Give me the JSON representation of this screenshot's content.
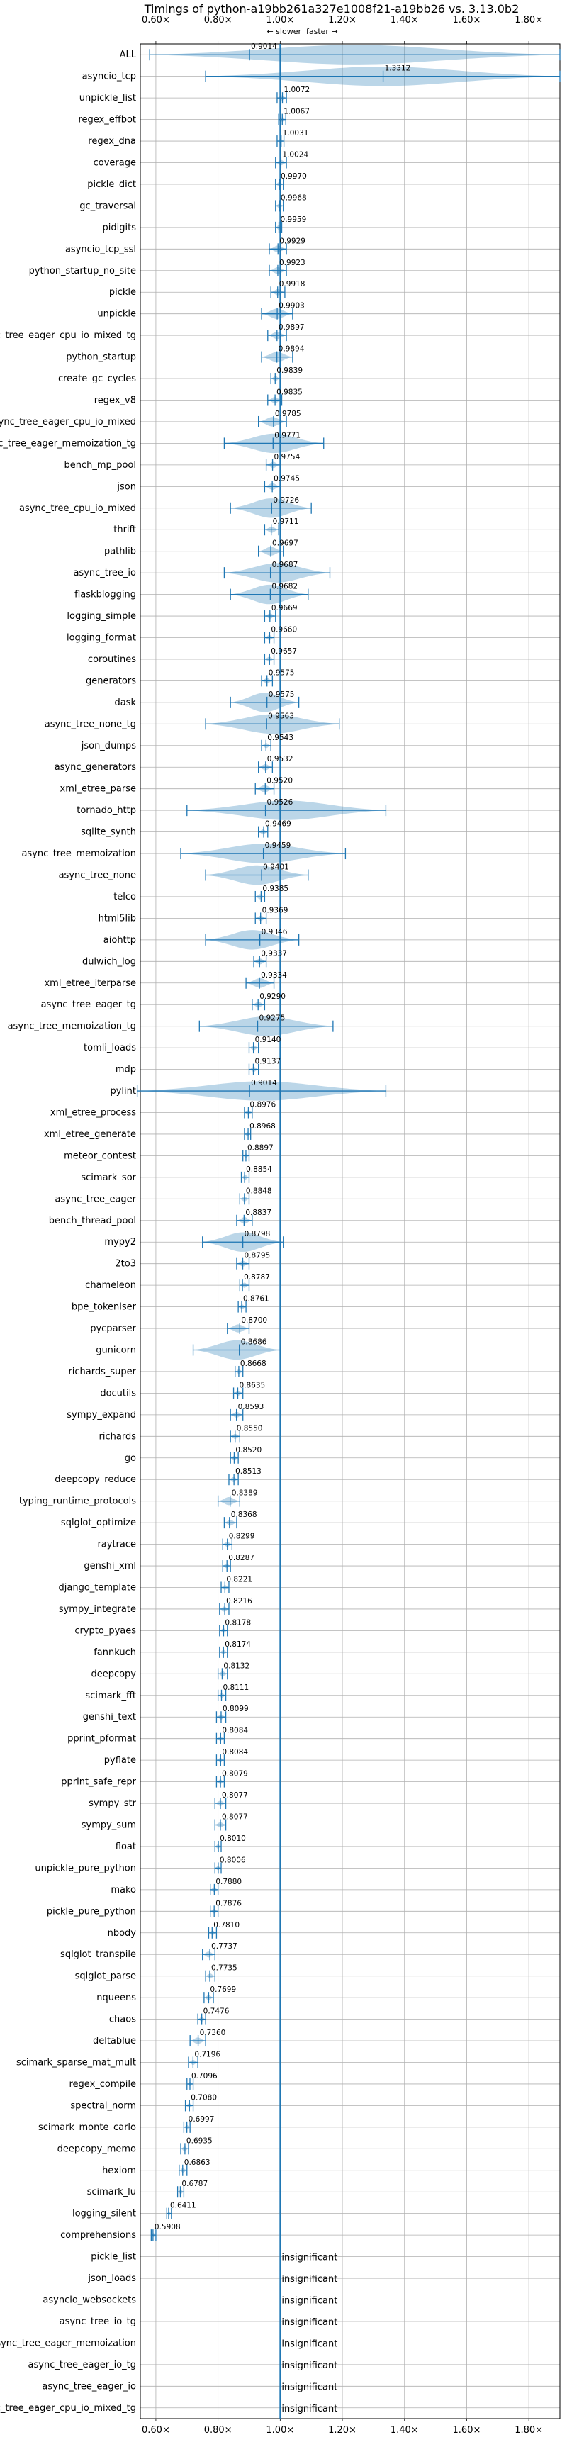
{
  "chart_data": {
    "type": "violin",
    "title": "Timings of python-a19bb261a327e1008f21-a19bb26 vs. 3.13.0b2",
    "direction_labels": {
      "slower": "← slower",
      "faster": "faster →"
    },
    "x_ticks": [
      "0.60×",
      "0.80×",
      "1.00×",
      "1.20×",
      "1.40×",
      "1.60×",
      "1.80×"
    ],
    "x_tick_values": [
      0.6,
      0.8,
      1.0,
      1.2,
      1.4,
      1.6,
      1.8
    ],
    "xlim": [
      0.55,
      1.9
    ],
    "reference_line": 1.0,
    "grid": true,
    "insignificant_label": "insignificant",
    "categories": [
      "ALL",
      "asyncio_tcp",
      "unpickle_list",
      "regex_effbot",
      "regex_dna",
      "coverage",
      "pickle_dict",
      "gc_traversal",
      "pidigits",
      "asyncio_tcp_ssl",
      "python_startup_no_site",
      "pickle",
      "unpickle",
      "async_tree_eager_cpu_io_mixed_tg",
      "python_startup",
      "create_gc_cycles",
      "regex_v8",
      "async_tree_eager_cpu_io_mixed",
      "async_tree_eager_memoization_tg",
      "bench_mp_pool",
      "json",
      "async_tree_cpu_io_mixed",
      "thrift",
      "pathlib",
      "async_tree_io",
      "flaskblogging",
      "logging_simple",
      "logging_format",
      "coroutines",
      "generators",
      "dask",
      "async_tree_none_tg",
      "json_dumps",
      "async_generators",
      "xml_etree_parse",
      "tornado_http",
      "sqlite_synth",
      "async_tree_memoization",
      "async_tree_none",
      "telco",
      "html5lib",
      "aiohttp",
      "dulwich_log",
      "xml_etree_iterparse",
      "async_tree_eager_tg",
      "async_tree_memoization_tg",
      "tomli_loads",
      "mdp",
      "pylint",
      "xml_etree_process",
      "xml_etree_generate",
      "meteor_contest",
      "scimark_sor",
      "async_tree_eager",
      "bench_thread_pool",
      "mypy2",
      "2to3",
      "chameleon",
      "bpe_tokeniser",
      "pycparser",
      "gunicorn",
      "richards_super",
      "docutils",
      "sympy_expand",
      "richards",
      "go",
      "deepcopy_reduce",
      "typing_runtime_protocols",
      "sqlglot_optimize",
      "raytrace",
      "genshi_xml",
      "django_template",
      "sympy_integrate",
      "crypto_pyaes",
      "fannkuch",
      "deepcopy",
      "scimark_fft",
      "genshi_text",
      "pprint_pformat",
      "pyflate",
      "pprint_safe_repr",
      "sympy_str",
      "sympy_sum",
      "float",
      "unpickle_pure_python",
      "mako",
      "pickle_pure_python",
      "nbody",
      "sqlglot_transpile",
      "sqlglot_parse",
      "nqueens",
      "chaos",
      "deltablue",
      "scimark_sparse_mat_mult",
      "regex_compile",
      "spectral_norm",
      "scimark_monte_carlo",
      "deepcopy_memo",
      "hexiom",
      "scimark_lu",
      "logging_silent",
      "comprehensions",
      "pickle_list",
      "json_loads",
      "asyncio_websockets",
      "async_tree_io_tg",
      "async_tree_eager_memoization",
      "async_tree_eager_io_tg",
      "async_tree_eager_io",
      "async_tree_eager_cpu_io_mixed_tg"
    ],
    "values": [
      0.9014,
      1.3312,
      1.0072,
      1.0067,
      1.0031,
      1.0024,
      0.997,
      0.9968,
      0.9959,
      0.9929,
      0.9923,
      0.9918,
      0.9903,
      0.9897,
      0.9894,
      0.9839,
      0.9835,
      0.9785,
      0.9771,
      0.9754,
      0.9745,
      0.9726,
      0.9711,
      0.9697,
      0.9687,
      0.9682,
      0.9669,
      0.966,
      0.9657,
      0.9575,
      0.9575,
      0.9563,
      0.9543,
      0.9532,
      0.952,
      0.9526,
      0.9469,
      0.9459,
      0.9401,
      0.9385,
      0.9369,
      0.9346,
      0.9337,
      0.9334,
      0.929,
      0.9275,
      0.914,
      0.9137,
      0.9014,
      0.8976,
      0.8968,
      0.8897,
      0.8854,
      0.8848,
      0.8837,
      0.8798,
      0.8795,
      0.8787,
      0.8761,
      0.87,
      0.8686,
      0.8668,
      0.8635,
      0.8593,
      0.855,
      0.852,
      0.8513,
      0.8389,
      0.8368,
      0.8299,
      0.8287,
      0.8221,
      0.8216,
      0.8178,
      0.8174,
      0.8132,
      0.8111,
      0.8099,
      0.8084,
      0.8084,
      0.8079,
      0.8077,
      0.8077,
      0.801,
      0.8006,
      0.788,
      0.7876,
      0.781,
      0.7737,
      0.7735,
      0.7699,
      0.7476,
      0.736,
      0.7196,
      0.7096,
      0.708,
      0.6997,
      0.6935,
      0.6863,
      0.6787,
      0.6411,
      0.5908,
      null,
      null,
      null,
      null,
      null,
      null,
      null,
      null
    ],
    "value_labels": [
      "0.9014",
      "1.3312",
      "1.0072",
      "1.0067",
      "1.0031",
      "1.0024",
      "0.9970",
      "0.9968",
      "0.9959",
      "0.9929",
      "0.9923",
      "0.9918",
      "0.9903",
      "0.9897",
      "0.9894",
      "0.9839",
      "0.9835",
      "0.9785",
      "0.9771",
      "0.9754",
      "0.9745",
      "0.9726",
      "0.9711",
      "0.9697",
      "0.9687",
      "0.9682",
      "0.9669",
      "0.9660",
      "0.9657",
      "0.9575",
      "0.9575",
      "0.9563",
      "0.9543",
      "0.9532",
      "0.9520",
      "0.9526",
      "0.9469",
      "0.9459",
      "0.9401",
      "0.9385",
      "0.9369",
      "0.9346",
      "0.9337",
      "0.9334",
      "0.9290",
      "0.9275",
      "0.9140",
      "0.9137",
      "0.9014",
      "0.8976",
      "0.8968",
      "0.8897",
      "0.8854",
      "0.8848",
      "0.8837",
      "0.8798",
      "0.8795",
      "0.8787",
      "0.8761",
      "0.8700",
      "0.8686",
      "0.8668",
      "0.8635",
      "0.8593",
      "0.8550",
      "0.8520",
      "0.8513",
      "0.8389",
      "0.8368",
      "0.8299",
      "0.8287",
      "0.8221",
      "0.8216",
      "0.8178",
      "0.8174",
      "0.8132",
      "0.8111",
      "0.8099",
      "0.8084",
      "0.8084",
      "0.8079",
      "0.8077",
      "0.8077",
      "0.8010",
      "0.8006",
      "0.7880",
      "0.7876",
      "0.7810",
      "0.7737",
      "0.7735",
      "0.7699",
      "0.7476",
      "0.7360",
      "0.7196",
      "0.7096",
      "0.7080",
      "0.6997",
      "0.6935",
      "0.6863",
      "0.6787",
      "0.6411",
      "0.5908",
      "",
      "",
      "",
      "",
      "",
      "",
      "",
      ""
    ],
    "ranges": [
      [
        0.58,
        1.9
      ],
      [
        0.76,
        1.9
      ],
      [
        0.99,
        1.02
      ],
      [
        0.995,
        1.018
      ],
      [
        0.99,
        1.012
      ],
      [
        0.985,
        1.02
      ],
      [
        0.985,
        1.01
      ],
      [
        0.985,
        1.01
      ],
      [
        0.985,
        1.005
      ],
      [
        0.965,
        1.02
      ],
      [
        0.965,
        1.02
      ],
      [
        0.97,
        1.015
      ],
      [
        0.94,
        1.04
      ],
      [
        0.96,
        1.02
      ],
      [
        0.94,
        1.04
      ],
      [
        0.97,
        1.0
      ],
      [
        0.96,
        1.005
      ],
      [
        0.93,
        1.02
      ],
      [
        0.82,
        1.14
      ],
      [
        0.955,
        1.0
      ],
      [
        0.95,
        1.0
      ],
      [
        0.84,
        1.1
      ],
      [
        0.95,
        0.995
      ],
      [
        0.93,
        1.01
      ],
      [
        0.82,
        1.16
      ],
      [
        0.84,
        1.09
      ],
      [
        0.95,
        0.985
      ],
      [
        0.95,
        0.98
      ],
      [
        0.95,
        0.98
      ],
      [
        0.94,
        0.975
      ],
      [
        0.84,
        1.06
      ],
      [
        0.76,
        1.19
      ],
      [
        0.94,
        0.97
      ],
      [
        0.93,
        0.975
      ],
      [
        0.92,
        0.98
      ],
      [
        0.7,
        1.34
      ],
      [
        0.93,
        0.96
      ],
      [
        0.68,
        1.21
      ],
      [
        0.76,
        1.09
      ],
      [
        0.92,
        0.95
      ],
      [
        0.92,
        0.955
      ],
      [
        0.76,
        1.06
      ],
      [
        0.915,
        0.955
      ],
      [
        0.89,
        0.98
      ],
      [
        0.91,
        0.95
      ],
      [
        0.74,
        1.17
      ],
      [
        0.9,
        0.93
      ],
      [
        0.9,
        0.93
      ],
      [
        0.54,
        1.34
      ],
      [
        0.885,
        0.91
      ],
      [
        0.885,
        0.905
      ],
      [
        0.88,
        0.9
      ],
      [
        0.875,
        0.9
      ],
      [
        0.87,
        0.9
      ],
      [
        0.86,
        0.91
      ],
      [
        0.75,
        1.01
      ],
      [
        0.86,
        0.9
      ],
      [
        0.87,
        0.9
      ],
      [
        0.865,
        0.89
      ],
      [
        0.83,
        0.9
      ],
      [
        0.72,
        1.0
      ],
      [
        0.855,
        0.88
      ],
      [
        0.85,
        0.88
      ],
      [
        0.84,
        0.88
      ],
      [
        0.84,
        0.87
      ],
      [
        0.84,
        0.865
      ],
      [
        0.835,
        0.865
      ],
      [
        0.8,
        0.87
      ],
      [
        0.82,
        0.86
      ],
      [
        0.815,
        0.845
      ],
      [
        0.815,
        0.84
      ],
      [
        0.81,
        0.835
      ],
      [
        0.805,
        0.835
      ],
      [
        0.805,
        0.83
      ],
      [
        0.805,
        0.83
      ],
      [
        0.8,
        0.83
      ],
      [
        0.8,
        0.825
      ],
      [
        0.795,
        0.825
      ],
      [
        0.795,
        0.82
      ],
      [
        0.795,
        0.82
      ],
      [
        0.795,
        0.82
      ],
      [
        0.79,
        0.825
      ],
      [
        0.79,
        0.825
      ],
      [
        0.79,
        0.81
      ],
      [
        0.79,
        0.81
      ],
      [
        0.775,
        0.8
      ],
      [
        0.775,
        0.8
      ],
      [
        0.77,
        0.795
      ],
      [
        0.75,
        0.79
      ],
      [
        0.76,
        0.79
      ],
      [
        0.755,
        0.785
      ],
      [
        0.735,
        0.76
      ],
      [
        0.71,
        0.76
      ],
      [
        0.705,
        0.735
      ],
      [
        0.7,
        0.72
      ],
      [
        0.695,
        0.72
      ],
      [
        0.69,
        0.71
      ],
      [
        0.68,
        0.705
      ],
      [
        0.675,
        0.7
      ],
      [
        0.67,
        0.69
      ],
      [
        0.635,
        0.65
      ],
      [
        0.585,
        0.6
      ],
      null,
      null,
      null,
      null,
      null,
      null,
      null,
      null
    ]
  }
}
